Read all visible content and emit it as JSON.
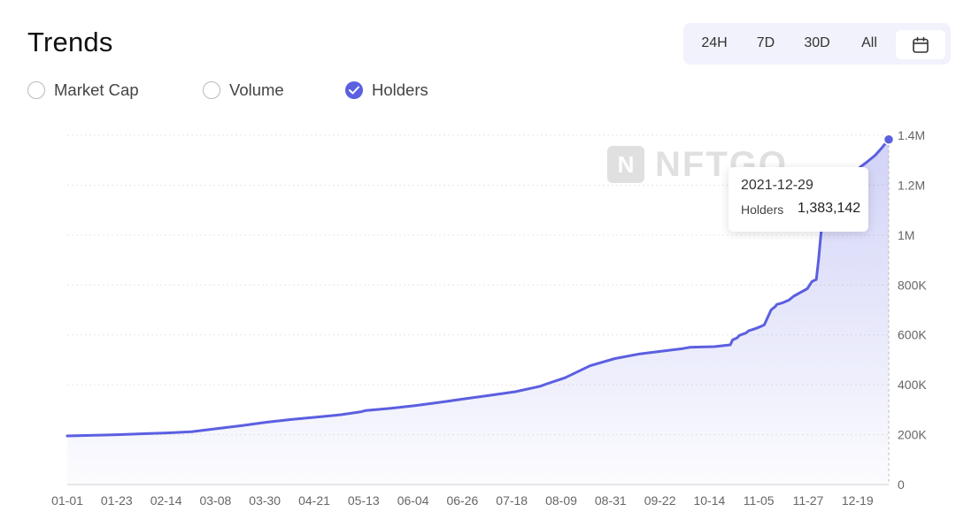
{
  "page_title": "Trends",
  "range_buttons": [
    "24H",
    "7D",
    "30D",
    "All"
  ],
  "calendar_icon": "calendar-icon",
  "toggles": [
    {
      "label": "Market Cap",
      "checked": false
    },
    {
      "label": "Volume",
      "checked": false
    },
    {
      "label": "Holders",
      "checked": true
    }
  ],
  "watermark": {
    "mark": "N",
    "text": "NFTGO"
  },
  "tooltip": {
    "date": "2021-12-29",
    "series": "Holders",
    "value": "1,383,142"
  },
  "colors": {
    "line": "#5b5fe0",
    "accent_bg": "#f1f2fc",
    "grid": "#e6e6e6",
    "axis_text": "#666666"
  },
  "chart_data": {
    "type": "area",
    "title": "",
    "xlabel": "",
    "ylabel": "",
    "x_ticks": [
      "01-01",
      "01-23",
      "02-14",
      "03-08",
      "03-30",
      "04-21",
      "05-13",
      "06-04",
      "06-26",
      "07-18",
      "08-09",
      "08-31",
      "09-22",
      "10-14",
      "11-05",
      "11-27",
      "12-19"
    ],
    "y_ticks": [
      "0",
      "200K",
      "400K",
      "600K",
      "800K",
      "1M",
      "1.2M",
      "1.4M"
    ],
    "ylim": [
      0,
      1400000
    ],
    "xlim_day": [
      0,
      363
    ],
    "y_axis_side": "right",
    "grid": "horizontal-dashed",
    "series": [
      {
        "name": "Holders",
        "day": [
          0,
          10,
          22,
          35,
          44,
          55,
          66,
          77,
          88,
          99,
          110,
          121,
          130,
          132,
          143,
          154,
          165,
          176,
          187,
          198,
          209,
          212,
          220,
          231,
          237,
          242,
          253,
          264,
          272,
          275,
          286,
          293,
          294,
          296,
          297,
          300,
          301,
          304,
          306,
          308,
          311,
          313,
          313.5,
          316,
          319,
          321,
          327,
          329,
          330,
          331,
          332,
          333,
          334,
          338,
          341,
          345,
          348,
          350,
          353,
          357,
          360,
          363
        ],
        "value": [
          195000,
          197000,
          200000,
          204000,
          207000,
          212000,
          224000,
          236000,
          250000,
          261000,
          270000,
          280000,
          292000,
          297000,
          306000,
          317000,
          330000,
          344000,
          358000,
          372000,
          394000,
          404000,
          428000,
          476000,
          492000,
          505000,
          524000,
          536000,
          545000,
          550000,
          553000,
          560000,
          580000,
          588000,
          598000,
          608000,
          616000,
          625000,
          632000,
          640000,
          700000,
          715000,
          722000,
          728000,
          740000,
          755000,
          785000,
          813000,
          818000,
          822000,
          900000,
          1000000,
          1080000,
          1130000,
          1180000,
          1215000,
          1240000,
          1270000,
          1290000,
          1320000,
          1350000,
          1383142
        ]
      }
    ]
  }
}
